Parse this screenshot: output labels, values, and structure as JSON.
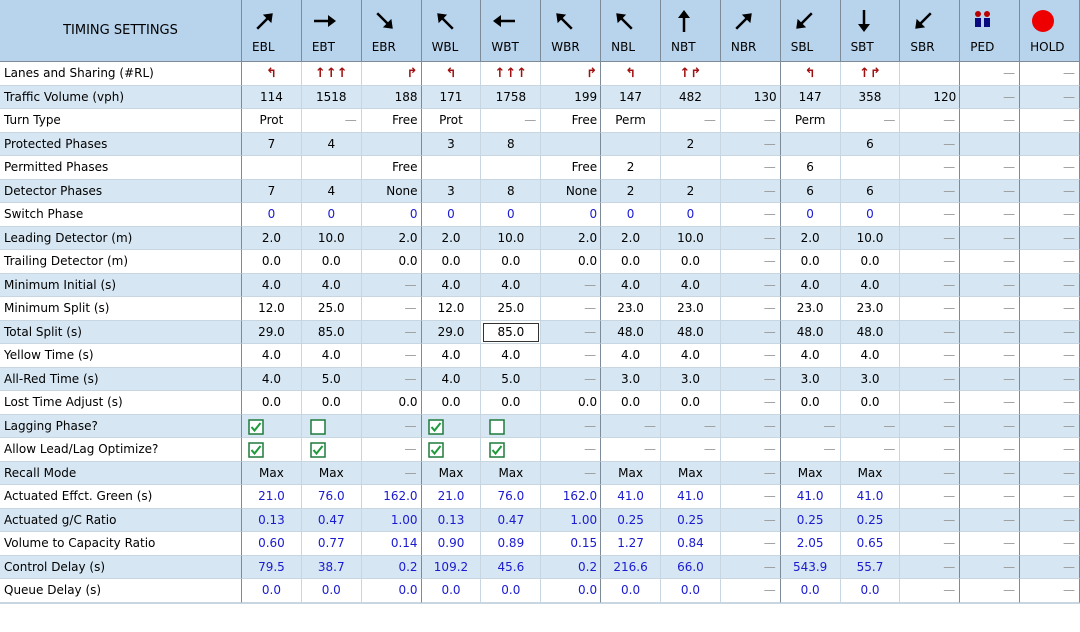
{
  "header": {
    "title": "TIMING SETTINGS",
    "columns": [
      "EBL",
      "EBT",
      "EBR",
      "WBL",
      "WBT",
      "WBR",
      "NBL",
      "NBT",
      "NBR",
      "SBL",
      "SBT",
      "SBR",
      "PED",
      "HOLD"
    ]
  },
  "table": {
    "rows": [
      {
        "label": "Lanes and Sharing (#RL)",
        "color": "#a01010",
        "cells": [
          "↰",
          "↑↑↑",
          "↱",
          "↰",
          "↑↑↑",
          "↱",
          "↰",
          "↑↱",
          null,
          "↰",
          "↑↱",
          null,
          "—",
          "—"
        ]
      },
      {
        "label": "Traffic Volume (vph)",
        "color": "#000000",
        "cells": [
          "114",
          "1518",
          "188",
          "171",
          "1758",
          "199",
          "147",
          "482",
          "130",
          "147",
          "358",
          "120",
          "—",
          "—"
        ]
      },
      {
        "label": "Turn Type",
        "color": "#000000",
        "cells": [
          "Prot",
          "—",
          "Free",
          "Prot",
          "—",
          "Free",
          "Perm",
          "—",
          "—",
          "Perm",
          "—",
          "—",
          "—",
          "—"
        ]
      },
      {
        "label": "Protected Phases",
        "color": "#000000",
        "cells": [
          "7",
          "4",
          null,
          "3",
          "8",
          null,
          null,
          "2",
          "—",
          null,
          "6",
          "—",
          null,
          null
        ]
      },
      {
        "label": "Permitted Phases",
        "color": "#000000",
        "cells": [
          null,
          null,
          "Free",
          null,
          null,
          "Free",
          "2",
          null,
          "—",
          "6",
          null,
          "—",
          "—",
          "—"
        ]
      },
      {
        "label": "Detector Phases",
        "color": "#000000",
        "cells": [
          "7",
          "4",
          "None",
          "3",
          "8",
          "None",
          "2",
          "2",
          "—",
          "6",
          "6",
          "—",
          "—",
          "—"
        ]
      },
      {
        "label": "Switch Phase",
        "color": "#1a1ad0",
        "cells": [
          "0",
          "0",
          "0",
          "0",
          "0",
          "0",
          "0",
          "0",
          "—",
          "0",
          "0",
          "—",
          "—",
          "—"
        ]
      },
      {
        "label": "Leading Detector (m)",
        "color": "#000000",
        "cells": [
          "2.0",
          "10.0",
          "2.0",
          "2.0",
          "10.0",
          "2.0",
          "2.0",
          "10.0",
          "—",
          "2.0",
          "10.0",
          "—",
          "—",
          "—"
        ]
      },
      {
        "label": "Trailing Detector (m)",
        "color": "#000000",
        "cells": [
          "0.0",
          "0.0",
          "0.0",
          "0.0",
          "0.0",
          "0.0",
          "0.0",
          "0.0",
          "—",
          "0.0",
          "0.0",
          "—",
          "—",
          "—"
        ]
      },
      {
        "label": "Minimum Initial (s)",
        "color": "#000000",
        "cells": [
          "4.0",
          "4.0",
          "—",
          "4.0",
          "4.0",
          "—",
          "4.0",
          "4.0",
          "—",
          "4.0",
          "4.0",
          "—",
          "—",
          "—"
        ]
      },
      {
        "label": "Minimum Split (s)",
        "color": "#000000",
        "cells": [
          "12.0",
          "25.0",
          "—",
          "12.0",
          "25.0",
          "—",
          "23.0",
          "23.0",
          "—",
          "23.0",
          "23.0",
          "—",
          "—",
          "—"
        ]
      },
      {
        "label": "Total Split (s)",
        "color": "#000000",
        "cells": [
          "29.0",
          "85.0",
          "—",
          "29.0",
          "85.0",
          "—",
          "48.0",
          "48.0",
          "—",
          "48.0",
          "48.0",
          "—",
          "—",
          "—"
        ]
      },
      {
        "label": "Yellow Time (s)",
        "color": "#000000",
        "cells": [
          "4.0",
          "4.0",
          "—",
          "4.0",
          "4.0",
          "—",
          "4.0",
          "4.0",
          "—",
          "4.0",
          "4.0",
          "—",
          "—",
          "—"
        ]
      },
      {
        "label": "All-Red Time (s)",
        "color": "#000000",
        "cells": [
          "4.0",
          "5.0",
          "—",
          "4.0",
          "5.0",
          "—",
          "3.0",
          "3.0",
          "—",
          "3.0",
          "3.0",
          "—",
          "—",
          "—"
        ]
      },
      {
        "label": "Lost Time Adjust (s)",
        "color": "#000000",
        "cells": [
          "0.0",
          "0.0",
          "0.0",
          "0.0",
          "0.0",
          "0.0",
          "0.0",
          "0.0",
          "—",
          "0.0",
          "0.0",
          "—",
          "—",
          "—"
        ]
      },
      {
        "label": "Lagging Phase?",
        "color": "#000000",
        "cells": [
          true,
          false,
          "—",
          true,
          false,
          "—",
          "—",
          "—",
          "—",
          "—",
          "—",
          "—",
          "—",
          "—"
        ]
      },
      {
        "label": "Allow Lead/Lag Optimize?",
        "color": "#000000",
        "cells": [
          true,
          true,
          "—",
          true,
          true,
          "—",
          "—",
          "—",
          "—",
          "—",
          "—",
          "—",
          "—",
          "—"
        ]
      },
      {
        "label": "Recall Mode",
        "color": "#000000",
        "cells": [
          "Max",
          "Max",
          "—",
          "Max",
          "Max",
          "—",
          "Max",
          "Max",
          "—",
          "Max",
          "Max",
          "—",
          "—",
          "—"
        ]
      },
      {
        "label": "Actuated Effct. Green (s)",
        "color": "#1a1ad0",
        "cells": [
          "21.0",
          "76.0",
          "162.0",
          "21.0",
          "76.0",
          "162.0",
          "41.0",
          "41.0",
          "—",
          "41.0",
          "41.0",
          "—",
          "—",
          "—"
        ]
      },
      {
        "label": "Actuated g/C Ratio",
        "color": "#1a1ad0",
        "cells": [
          "0.13",
          "0.47",
          "1.00",
          "0.13",
          "0.47",
          "1.00",
          "0.25",
          "0.25",
          "—",
          "0.25",
          "0.25",
          "—",
          "—",
          "—"
        ]
      },
      {
        "label": "Volume to Capacity Ratio",
        "color": "#1a1ad0",
        "cells": [
          "0.60",
          "0.77",
          "0.14",
          "0.90",
          "0.89",
          "0.15",
          "1.27",
          "0.84",
          "—",
          "2.05",
          "0.65",
          "—",
          "—",
          "—"
        ]
      },
      {
        "label": "Control Delay (s)",
        "color": "#1a1ad0",
        "cells": [
          "79.5",
          "38.7",
          "0.2",
          "109.2",
          "45.6",
          "0.2",
          "216.6",
          "66.0",
          "—",
          "543.9",
          "55.7",
          "—",
          "—",
          "—"
        ]
      },
      {
        "label": "Queue Delay (s)",
        "color": "#1a1ad0",
        "cells": [
          "0.0",
          "0.0",
          "0.0",
          "0.0",
          "0.0",
          "0.0",
          "0.0",
          "0.0",
          "—",
          "0.0",
          "0.0",
          "—",
          "—",
          "—"
        ]
      }
    ]
  }
}
